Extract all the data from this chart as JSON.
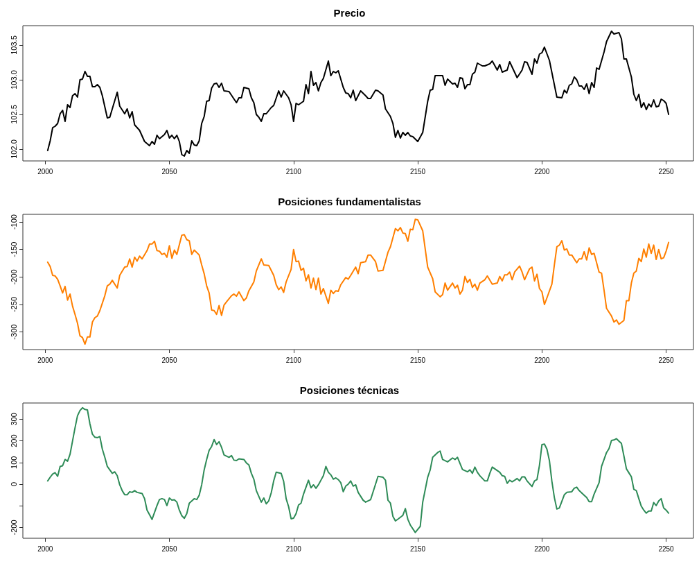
{
  "chart_data": [
    {
      "type": "line",
      "title": "Precio",
      "xlim": [
        1991,
        2261
      ],
      "xticks": [
        2000,
        2050,
        2100,
        2150,
        2200,
        2250
      ],
      "ylim": [
        101.83,
        103.78
      ],
      "yticks": [
        {
          "value": 102,
          "label": "102.0"
        },
        {
          "value": 102.5,
          "label": "102.5"
        },
        {
          "value": 103,
          "label": "103.0"
        },
        {
          "value": 103.5,
          "label": "103.5"
        }
      ],
      "grid": false,
      "marker": "none",
      "line_style": "solid",
      "x": [
        2001,
        2002,
        2003,
        2004,
        2005,
        2006,
        2007,
        2008,
        2009,
        2010,
        2011,
        2012,
        2013,
        2014,
        2015,
        2016,
        2017,
        2018,
        2019,
        2020,
        2021,
        2022,
        2023,
        2025,
        2026,
        2027,
        2029,
        2030,
        2032,
        2033,
        2034,
        2035,
        2036,
        2038,
        2040,
        2042,
        2043,
        2044,
        2045,
        2046,
        2048,
        2049,
        2050,
        2051,
        2052,
        2053,
        2054,
        2055,
        2056,
        2057,
        2058,
        2059,
        2060,
        2061,
        2062,
        2063,
        2064,
        2065,
        2066,
        2067,
        2068,
        2069,
        2070,
        2071,
        2072,
        2074,
        2077,
        2078,
        2079,
        2080,
        2082,
        2083,
        2084,
        2085,
        2086,
        2087,
        2088,
        2089,
        2091,
        2092,
        2094,
        2095,
        2096,
        2098,
        2099,
        2100,
        2101,
        2102,
        2104,
        2105,
        2106,
        2107,
        2108,
        2109,
        2110,
        2111,
        2112,
        2114,
        2115,
        2116,
        2117,
        2118,
        2120,
        2121,
        2122,
        2123,
        2124,
        2125,
        2127,
        2129,
        2130,
        2131,
        2133,
        2134,
        2136,
        2137,
        2139,
        2140,
        2141,
        2142,
        2143,
        2144,
        2145,
        2146,
        2147,
        2148,
        2150,
        2152,
        2154,
        2155,
        2156,
        2157,
        2160,
        2161,
        2162,
        2164,
        2165,
        2166,
        2167,
        2168,
        2169,
        2170,
        2171,
        2172,
        2173,
        2174,
        2176,
        2177,
        2179,
        2180,
        2182,
        2183,
        2184,
        2186,
        2187,
        2190,
        2192,
        2193,
        2194,
        2196,
        2197,
        2198,
        2199,
        2200,
        2201,
        2203,
        2206,
        2208,
        2209,
        2210,
        2211,
        2212,
        2213,
        2214,
        2215,
        2216,
        2217,
        2218,
        2219,
        2220,
        2221,
        2222,
        2223,
        2225,
        2226,
        2228,
        2229,
        2231,
        2232,
        2233,
        2234,
        2236,
        2237,
        2238,
        2239,
        2240,
        2241,
        2242,
        2243,
        2244,
        2245,
        2246,
        2247,
        2248,
        2249,
        2250,
        2251
      ],
      "series": [
        {
          "color": "#000000",
          "values": [
            101.98,
            102.12,
            102.31,
            102.33,
            102.37,
            102.51,
            102.56,
            102.4,
            102.64,
            102.6,
            102.77,
            102.8,
            102.75,
            103.0,
            103.01,
            103.12,
            103.05,
            103.05,
            102.9,
            102.9,
            102.93,
            102.89,
            102.77,
            102.45,
            102.46,
            102.58,
            102.82,
            102.62,
            102.51,
            102.58,
            102.45,
            102.54,
            102.35,
            102.27,
            102.11,
            102.05,
            102.11,
            102.07,
            102.2,
            102.15,
            102.21,
            102.27,
            102.16,
            102.2,
            102.15,
            102.2,
            102.11,
            101.92,
            101.9,
            101.98,
            101.94,
            102.12,
            102.06,
            102.05,
            102.12,
            102.37,
            102.47,
            102.69,
            102.7,
            102.88,
            102.94,
            102.95,
            102.89,
            102.95,
            102.84,
            102.83,
            102.67,
            102.74,
            102.74,
            102.89,
            102.87,
            102.74,
            102.67,
            102.5,
            102.46,
            102.4,
            102.51,
            102.51,
            102.6,
            102.63,
            102.84,
            102.75,
            102.84,
            102.74,
            102.64,
            102.4,
            102.66,
            102.64,
            102.69,
            102.93,
            102.8,
            103.12,
            102.92,
            102.96,
            102.84,
            102.96,
            103.02,
            103.27,
            103.06,
            103.12,
            103.1,
            103.13,
            102.89,
            102.81,
            102.8,
            102.74,
            102.85,
            102.7,
            102.84,
            102.77,
            102.73,
            102.73,
            102.85,
            102.84,
            102.78,
            102.58,
            102.47,
            102.37,
            102.17,
            102.27,
            102.16,
            102.24,
            102.2,
            102.24,
            102.19,
            102.18,
            102.11,
            102.24,
            102.69,
            102.85,
            102.86,
            103.06,
            103.06,
            102.92,
            103.01,
            102.94,
            102.95,
            102.89,
            103.03,
            103.02,
            102.87,
            102.93,
            102.93,
            103.08,
            103.11,
            103.24,
            103.2,
            103.2,
            103.23,
            103.27,
            103.14,
            103.22,
            103.11,
            103.14,
            103.26,
            103.03,
            103.14,
            103.26,
            103.25,
            103.08,
            103.3,
            103.24,
            103.37,
            103.39,
            103.47,
            103.28,
            102.75,
            102.74,
            102.85,
            102.81,
            102.92,
            102.94,
            103.04,
            103.0,
            102.91,
            102.91,
            102.86,
            102.94,
            102.8,
            102.96,
            102.89,
            103.17,
            103.15,
            103.4,
            103.55,
            103.7,
            103.66,
            103.68,
            103.59,
            103.3,
            103.3,
            103.04,
            102.79,
            102.7,
            102.79,
            102.6,
            102.67,
            102.57,
            102.65,
            102.61,
            102.71,
            102.61,
            102.62,
            102.72,
            102.7,
            102.66,
            102.5
          ]
        }
      ]
    },
    {
      "type": "line",
      "title": "Posiciones fundamentalistas",
      "xlim": [
        1991,
        2261
      ],
      "xticks": [
        2000,
        2050,
        2100,
        2150,
        2200,
        2250
      ],
      "ylim": [
        -332,
        -86
      ],
      "yticks": [
        -300,
        -250,
        -200,
        -150,
        -100
      ],
      "grid": false,
      "marker": "none",
      "line_style": "solid",
      "x": [
        2001,
        2002,
        2003,
        2004,
        2005,
        2006,
        2007,
        2008,
        2009,
        2010,
        2011,
        2012,
        2013,
        2014,
        2015,
        2016,
        2017,
        2018,
        2019,
        2020,
        2021,
        2022,
        2024,
        2025,
        2026,
        2027,
        2029,
        2030,
        2032,
        2033,
        2034,
        2035,
        2036,
        2037,
        2038,
        2039,
        2041,
        2042,
        2043,
        2044,
        2045,
        2046,
        2047,
        2048,
        2049,
        2050,
        2051,
        2052,
        2053,
        2055,
        2056,
        2057,
        2058,
        2059,
        2060,
        2062,
        2063,
        2064,
        2065,
        2066,
        2067,
        2068,
        2069,
        2070,
        2071,
        2072,
        2073,
        2075,
        2076,
        2077,
        2078,
        2080,
        2081,
        2082,
        2084,
        2085,
        2087,
        2088,
        2090,
        2092,
        2093,
        2094,
        2095,
        2096,
        2097,
        2099,
        2100,
        2101,
        2102,
        2103,
        2104,
        2105,
        2106,
        2107,
        2108,
        2109,
        2110,
        2111,
        2112,
        2114,
        2115,
        2116,
        2117,
        2118,
        2119,
        2121,
        2122,
        2123,
        2125,
        2126,
        2127,
        2129,
        2130,
        2131,
        2133,
        2134,
        2136,
        2138,
        2139,
        2141,
        2142,
        2143,
        2144,
        2145,
        2146,
        2147,
        2148,
        2149,
        2150,
        2152,
        2154,
        2156,
        2157,
        2159,
        2160,
        2161,
        2162,
        2164,
        2165,
        2166,
        2167,
        2168,
        2169,
        2170,
        2171,
        2172,
        2173,
        2174,
        2175,
        2177,
        2178,
        2180,
        2182,
        2183,
        2184,
        2185,
        2186,
        2187,
        2188,
        2189,
        2191,
        2192,
        2193,
        2195,
        2196,
        2197,
        2198,
        2199,
        2200,
        2201,
        2202,
        2204,
        2205,
        2206,
        2207,
        2208,
        2209,
        2210,
        2211,
        2212,
        2214,
        2215,
        2216,
        2217,
        2218,
        2219,
        2220,
        2221,
        2223,
        2224,
        2225,
        2226,
        2228,
        2229,
        2230,
        2231,
        2233,
        2234,
        2235,
        2236,
        2237,
        2238,
        2239,
        2240,
        2241,
        2242,
        2243,
        2244,
        2245,
        2246,
        2247,
        2248,
        2249,
        2250,
        2251
      ],
      "series": [
        {
          "color": "#ff7f00",
          "values": [
            -173,
            -181,
            -197,
            -198,
            -204,
            -216,
            -229,
            -217,
            -242,
            -231,
            -253,
            -268,
            -284,
            -307,
            -310,
            -322,
            -309,
            -309,
            -282,
            -274,
            -271,
            -261,
            -234,
            -216,
            -213,
            -206,
            -220,
            -197,
            -182,
            -181,
            -167,
            -182,
            -164,
            -171,
            -162,
            -167,
            -152,
            -140,
            -140,
            -135,
            -152,
            -153,
            -159,
            -157,
            -164,
            -143,
            -166,
            -151,
            -159,
            -124,
            -123,
            -132,
            -134,
            -159,
            -151,
            -160,
            -178,
            -194,
            -216,
            -229,
            -260,
            -261,
            -268,
            -252,
            -270,
            -251,
            -245,
            -234,
            -231,
            -235,
            -227,
            -243,
            -238,
            -225,
            -209,
            -189,
            -167,
            -178,
            -179,
            -197,
            -214,
            -223,
            -218,
            -228,
            -209,
            -186,
            -150,
            -172,
            -171,
            -188,
            -184,
            -207,
            -196,
            -220,
            -202,
            -223,
            -202,
            -231,
            -221,
            -248,
            -224,
            -230,
            -225,
            -226,
            -214,
            -201,
            -204,
            -197,
            -182,
            -194,
            -174,
            -172,
            -160,
            -160,
            -172,
            -189,
            -188,
            -155,
            -145,
            -112,
            -116,
            -110,
            -120,
            -121,
            -135,
            -113,
            -114,
            -95,
            -96,
            -116,
            -182,
            -203,
            -227,
            -236,
            -232,
            -211,
            -224,
            -211,
            -220,
            -215,
            -231,
            -224,
            -199,
            -210,
            -204,
            -219,
            -213,
            -224,
            -211,
            -205,
            -198,
            -213,
            -211,
            -199,
            -207,
            -196,
            -196,
            -191,
            -205,
            -191,
            -180,
            -191,
            -205,
            -185,
            -182,
            -207,
            -195,
            -221,
            -227,
            -250,
            -238,
            -213,
            -178,
            -145,
            -142,
            -134,
            -151,
            -149,
            -160,
            -160,
            -174,
            -167,
            -167,
            -154,
            -169,
            -147,
            -159,
            -157,
            -191,
            -193,
            -224,
            -257,
            -271,
            -282,
            -278,
            -286,
            -279,
            -243,
            -243,
            -211,
            -193,
            -189,
            -166,
            -172,
            -149,
            -164,
            -140,
            -157,
            -142,
            -168,
            -150,
            -167,
            -165,
            -153,
            -137
          ]
        }
      ]
    },
    {
      "type": "line",
      "title": "Posiciones técnicas",
      "xlim": [
        1991,
        2261
      ],
      "xticks": [
        2000,
        2050,
        2100,
        2150,
        2200,
        2250
      ],
      "ylim": [
        -250,
        375
      ],
      "yticks": [
        -200,
        {
          "value": -100,
          "label": null
        },
        0,
        100,
        200,
        300
      ],
      "grid": false,
      "marker": "none",
      "line_style": "solid",
      "x": [
        2001,
        2002,
        2003,
        2004,
        2005,
        2006,
        2007,
        2008,
        2009,
        2010,
        2011,
        2012,
        2013,
        2014,
        2015,
        2016,
        2017,
        2018,
        2019,
        2020,
        2021,
        2022,
        2023,
        2024,
        2025,
        2027,
        2028,
        2029,
        2030,
        2031,
        2032,
        2033,
        2034,
        2035,
        2036,
        2037,
        2039,
        2040,
        2041,
        2042,
        2043,
        2044,
        2045,
        2046,
        2047,
        2048,
        2049,
        2050,
        2051,
        2052,
        2053,
        2054,
        2055,
        2056,
        2057,
        2058,
        2059,
        2060,
        2061,
        2062,
        2063,
        2064,
        2065,
        2066,
        2067,
        2068,
        2069,
        2070,
        2071,
        2072,
        2074,
        2075,
        2076,
        2077,
        2078,
        2080,
        2081,
        2082,
        2083,
        2084,
        2085,
        2087,
        2088,
        2089,
        2090,
        2091,
        2092,
        2093,
        2095,
        2096,
        2097,
        2098,
        2099,
        2100,
        2101,
        2102,
        2103,
        2104,
        2105,
        2106,
        2107,
        2108,
        2109,
        2110,
        2111,
        2112,
        2113,
        2114,
        2115,
        2116,
        2117,
        2118,
        2119,
        2120,
        2121,
        2122,
        2123,
        2124,
        2125,
        2126,
        2128,
        2129,
        2131,
        2133,
        2134,
        2136,
        2137,
        2138,
        2139,
        2140,
        2141,
        2142,
        2144,
        2145,
        2146,
        2147,
        2149,
        2151,
        2152,
        2154,
        2155,
        2156,
        2158,
        2159,
        2160,
        2162,
        2164,
        2165,
        2166,
        2168,
        2170,
        2171,
        2172,
        2173,
        2174,
        2175,
        2177,
        2178,
        2179,
        2180,
        2181,
        2183,
        2184,
        2185,
        2186,
        2187,
        2188,
        2189,
        2190,
        2191,
        2192,
        2193,
        2194,
        2196,
        2197,
        2198,
        2199,
        2200,
        2201,
        2202,
        2203,
        2204,
        2205,
        2206,
        2207,
        2209,
        2210,
        2212,
        2213,
        2214,
        2215,
        2217,
        2218,
        2219,
        2220,
        2221,
        2223,
        2224,
        2226,
        2227,
        2228,
        2229,
        2230,
        2231,
        2232,
        2233,
        2234,
        2236,
        2237,
        2238,
        2239,
        2240,
        2241,
        2242,
        2243,
        2244,
        2245,
        2246,
        2247,
        2248,
        2249,
        2250,
        2251
      ],
      "series": [
        {
          "color": "#2e8b57",
          "values": [
            15,
            32,
            47,
            53,
            36,
            82,
            85,
            114,
            106,
            138,
            199,
            260,
            316,
            340,
            353,
            345,
            343,
            279,
            231,
            217,
            215,
            220,
            162,
            124,
            82,
            50,
            57,
            39,
            -3,
            -30,
            -49,
            -49,
            -35,
            -38,
            -30,
            -38,
            -43,
            -67,
            -120,
            -141,
            -163,
            -131,
            -99,
            -71,
            -67,
            -71,
            -99,
            -64,
            -74,
            -72,
            -83,
            -120,
            -146,
            -158,
            -136,
            -88,
            -78,
            -67,
            -71,
            -51,
            -3,
            66,
            114,
            156,
            174,
            206,
            183,
            196,
            170,
            135,
            124,
            132,
            111,
            109,
            117,
            114,
            98,
            89,
            50,
            23,
            -30,
            -83,
            -64,
            -91,
            -77,
            -40,
            15,
            55,
            50,
            13,
            -67,
            -104,
            -160,
            -157,
            -136,
            -96,
            -88,
            -46,
            -14,
            18,
            -17,
            -3,
            -19,
            -3,
            18,
            39,
            82,
            55,
            43,
            23,
            29,
            21,
            7,
            -35,
            -9,
            0,
            15,
            -9,
            -3,
            -38,
            -74,
            -83,
            -72,
            0,
            36,
            32,
            18,
            -74,
            -88,
            -149,
            -170,
            -162,
            -144,
            -113,
            -162,
            -189,
            -223,
            -195,
            -83,
            32,
            66,
            124,
            146,
            153,
            114,
            103,
            121,
            114,
            124,
            68,
            57,
            66,
            50,
            79,
            55,
            39,
            15,
            15,
            50,
            79,
            71,
            55,
            39,
            36,
            4,
            18,
            11,
            18,
            26,
            15,
            34,
            34,
            15,
            -11,
            15,
            21,
            87,
            183,
            185,
            162,
            109,
            13,
            -62,
            -115,
            -110,
            -49,
            -38,
            -35,
            -19,
            -14,
            -30,
            -51,
            -62,
            -81,
            -81,
            -46,
            7,
            82,
            146,
            164,
            202,
            204,
            210,
            199,
            188,
            130,
            71,
            34,
            -24,
            -30,
            -67,
            -102,
            -120,
            -134,
            -124,
            -124,
            -85,
            -99,
            -78,
            -67,
            -110,
            -120,
            -134
          ]
        }
      ]
    }
  ]
}
